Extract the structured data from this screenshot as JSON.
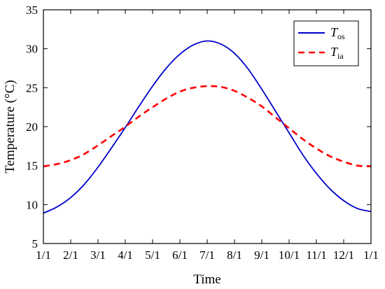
{
  "chart_data": {
    "type": "line",
    "title": "",
    "xlabel": "Time",
    "ylabel": "Temperature (°C)",
    "x_ticks": [
      "1/1",
      "2/1",
      "3/1",
      "4/1",
      "5/1",
      "6/1",
      "7/1",
      "8/1",
      "9/1",
      "10/1",
      "11/1",
      "12/1",
      "1/1"
    ],
    "xlim": [
      0,
      12
    ],
    "ylim": [
      5,
      35
    ],
    "y_ticks": [
      5,
      10,
      15,
      20,
      25,
      30,
      35
    ],
    "grid": false,
    "legend_position": "top-right",
    "series": [
      {
        "name": "T",
        "name_sub": "os",
        "color": "#0000cc",
        "style": "solid",
        "x": [
          0,
          0.5,
          1,
          1.5,
          2,
          2.5,
          3,
          3.5,
          4,
          4.5,
          5,
          5.5,
          6,
          6.5,
          7,
          7.5,
          8,
          8.5,
          9,
          9.5,
          10,
          10.5,
          11,
          11.5,
          12
        ],
        "y": [
          8.9,
          9.7,
          10.9,
          12.6,
          14.8,
          17.3,
          19.9,
          22.6,
          25.2,
          27.5,
          29.3,
          30.5,
          31.0,
          30.6,
          29.4,
          27.4,
          24.8,
          22.0,
          19.2,
          16.4,
          14.0,
          12.0,
          10.5,
          9.5,
          9.1
        ]
      },
      {
        "name": "T",
        "name_sub": "ia",
        "color": "#ff0000",
        "style": "dashed",
        "x": [
          0,
          0.5,
          1,
          1.5,
          2,
          2.5,
          3,
          3.5,
          4,
          4.5,
          5,
          5.5,
          6,
          6.5,
          7,
          7.5,
          8,
          8.5,
          9,
          9.5,
          10,
          10.5,
          11,
          11.5,
          12
        ],
        "y": [
          14.9,
          15.2,
          15.7,
          16.5,
          17.6,
          18.8,
          20.0,
          21.3,
          22.5,
          23.6,
          24.5,
          25.0,
          25.2,
          25.1,
          24.6,
          23.7,
          22.6,
          21.2,
          19.8,
          18.4,
          17.2,
          16.2,
          15.5,
          15.0,
          14.9
        ]
      }
    ]
  }
}
